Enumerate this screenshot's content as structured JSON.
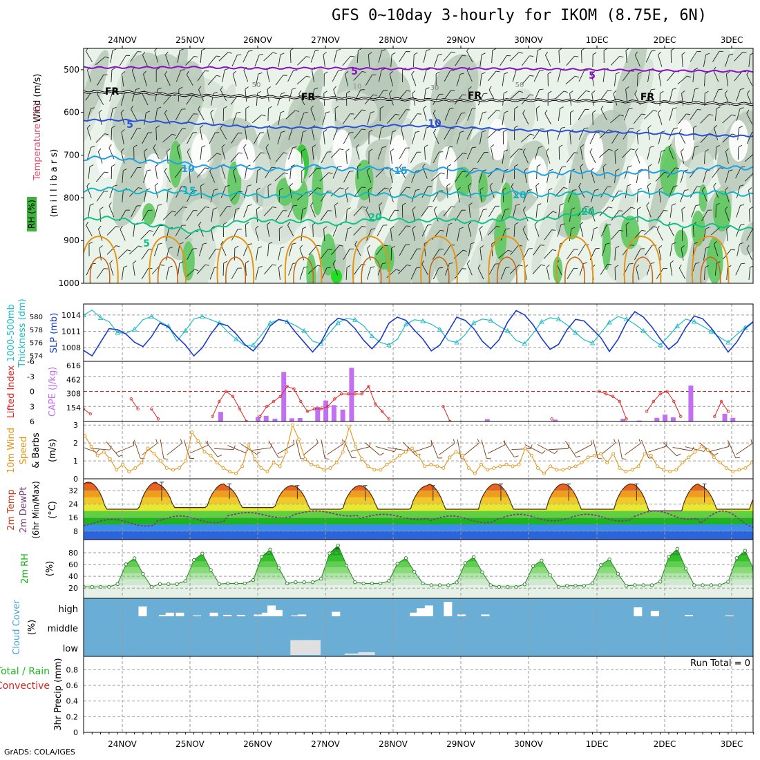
{
  "title": "GFS 0~10day 3-hourly for IKOM (8.75E, 6N)",
  "footer": "GrADS: COLA/IGES",
  "days": [
    "24NOV",
    "25NOV",
    "26NOV",
    "27NOV",
    "28NOV",
    "29NOV",
    "30NOV",
    "1DEC",
    "2DEC",
    "3DEC"
  ],
  "panel_labels": {
    "upper": [
      "Wind (m/s)",
      "Temperature (°C)",
      "RH (%)",
      "(m i l l i b a r s)"
    ],
    "thick_slp": [
      "1000-500mb",
      "Thickness (dm)",
      "SLP (mb)"
    ],
    "li_cape": [
      "Lifted Index",
      "CAPE (J/kg)"
    ],
    "wind10": [
      "10m Wind",
      "Speed",
      "& Barbs",
      "(m/s)"
    ],
    "temp2m": [
      "2m Temp",
      "2m DewPt",
      "(6hr Min/Max)",
      "(°C)"
    ],
    "rh2m": [
      "2m RH",
      "(%)"
    ],
    "cloud": [
      "Cloud Cover",
      "(%)"
    ],
    "precip": [
      "Total / Rain",
      "Convective",
      "3hr Precip (mm)"
    ]
  },
  "cloud_levels": [
    "high",
    "middle",
    "low"
  ],
  "run_total": "Run Total = 0",
  "colors": {
    "purple": "#8a0ec4",
    "blue5": "#2850d8",
    "blue10": "#1ea0e6",
    "cyan15": "#16b4c8",
    "green20": "#12c08a",
    "orange": "#e69414",
    "slp": "#1a3cc8",
    "thick": "#1cbcc8",
    "li": "#e02020",
    "cape": "#c070f0",
    "rh_green": "#10b010",
    "cloud_bg": "#6aaed6"
  },
  "chart_data": [
    {
      "type": "heatmap",
      "name": "upper",
      "ylabel": "millibars",
      "y_ticks": [
        500,
        600,
        700,
        800,
        900,
        1000
      ],
      "ylim": [
        1000,
        450
      ],
      "isotherm_labels": [
        "5",
        "FR",
        "FR",
        "FR",
        "FR",
        "5",
        "5",
        "10",
        "10",
        "15",
        "15",
        "20",
        "20",
        "20",
        "5"
      ],
      "rh_labels": [
        "50",
        "10",
        "30",
        "50"
      ],
      "isotherms": [
        {
          "value": -5,
          "p": [
            495,
            494,
            497,
            496,
            498,
            497,
            498,
            500,
            502,
            504
          ]
        },
        {
          "value": 0,
          "p": [
            552,
            560,
            563,
            566,
            569,
            572,
            571,
            573,
            576,
            580
          ]
        },
        {
          "value": 5,
          "p": [
            618,
            625,
            635,
            636,
            630,
            635,
            642,
            645,
            650,
            655
          ]
        },
        {
          "value": 10,
          "p": [
            708,
            722,
            732,
            728,
            735,
            735,
            740,
            743,
            740,
            728
          ]
        },
        {
          "value": 15,
          "p": [
            782,
            790,
            795,
            790,
            795,
            790,
            790,
            792,
            790,
            790
          ]
        },
        {
          "value": 20,
          "p": [
            850,
            880,
            850,
            860,
            850,
            855,
            850,
            835,
            860,
            870
          ]
        }
      ]
    },
    {
      "type": "line",
      "name": "thickness_slp",
      "series": [
        {
          "name": "1000-500mb Thickness (dm)",
          "axis_ticks": [
            574,
            576,
            578,
            580
          ],
          "values": [
            580.2,
            581,
            579.8,
            579.2,
            577.5,
            577.4,
            578,
            579.5,
            580,
            579.2,
            578.5,
            576.2,
            577.8,
            579.6,
            580,
            579.5,
            579,
            577.6,
            576.5,
            575.5,
            575.6,
            577.2,
            579,
            579.5,
            579.2,
            578.6,
            577.8,
            576.2,
            575.8,
            577.5,
            579,
            579.7,
            579.5,
            578.6,
            577,
            576,
            575.6,
            576.5,
            578.8,
            579.5,
            579.3,
            578.8,
            578,
            576.3,
            576,
            577.2,
            579,
            579.6,
            579.4,
            578.5,
            577.8,
            576.3,
            575.8,
            577.4,
            579.2,
            579.8,
            579.6,
            578.7,
            577.5,
            576.4,
            575.9,
            577.5,
            579.1,
            580,
            579.6,
            578.8,
            577.8,
            576.5,
            575.6,
            577,
            578.5,
            579.6,
            579.2,
            578.5,
            577.7,
            576.8,
            576,
            577.2,
            578.3,
            579.3,
            578.7,
            577.5,
            576.3,
            575,
            574.2
          ]
        },
        {
          "name": "SLP (mb)",
          "axis_ticks": [
            1008,
            1011,
            1014
          ],
          "values": [
            1007.5,
            1006.5,
            1009,
            1011.5,
            1011.3,
            1010.5,
            1009,
            1008.2,
            1010,
            1012.5,
            1011.8,
            1010,
            1008.5,
            1006.5,
            1008,
            1010.5,
            1012.5,
            1012,
            1010.5,
            1008.6,
            1007.4,
            1009.2,
            1012,
            1013.2,
            1012.8,
            1010.8,
            1009,
            1007.2,
            1009,
            1012,
            1013.4,
            1013,
            1011.5,
            1009.4,
            1007.8,
            1009.5,
            1012.5,
            1013.6,
            1013,
            1011.2,
            1009.6,
            1007.4,
            1008.5,
            1011,
            1013.6,
            1013,
            1011.5,
            1009.2,
            1007.8,
            1009.5,
            1012.7,
            1014.8,
            1014,
            1012.2,
            1009.7,
            1007.7,
            1008.6,
            1011.3,
            1013.2,
            1012.9,
            1011.4,
            1009.8,
            1007.3,
            1009.5,
            1012.6,
            1014.6,
            1013.6,
            1011.8,
            1009.6,
            1007.7,
            1009,
            1011.7,
            1013.8,
            1013.3,
            1011.6,
            1009.5,
            1007.2,
            1009,
            1011.5,
            1012.8,
            1011.6,
            1009.3,
            1006.5,
            1008.8,
            1011,
            1012,
            1011.8,
            1012.3,
            1013.4
          ]
        }
      ]
    },
    {
      "type": "bar",
      "name": "lifted_index_cape",
      "y_ticks_li": [
        -6,
        -3,
        0,
        3,
        6
      ],
      "y_ticks_cape": [
        154,
        308,
        462,
        616
      ],
      "li_series": [
        {
          "name": "Lifted Index",
          "values": [
            3.5,
            4.5,
            null,
            null,
            null,
            null,
            null,
            1.5,
            3.5,
            null,
            3.5,
            5.5,
            null,
            null,
            null,
            null,
            null,
            null,
            null,
            5,
            2,
            0,
            1,
            3.5,
            6,
            null,
            5,
            3,
            2,
            1,
            -1,
            -0.5,
            2,
            4,
            3.5,
            3.5,
            3,
            1.5,
            0.5,
            0.5,
            0.5,
            0.5,
            -1,
            2.5,
            4,
            5.5,
            null,
            null,
            null,
            null,
            null,
            null,
            null,
            3,
            6,
            null,
            null,
            null,
            null,
            null,
            null,
            null,
            null,
            null,
            null,
            null,
            null,
            null,
            null,
            5.5,
            null,
            null,
            null,
            null,
            null,
            null,
            0,
            0.5,
            1,
            2,
            5.5,
            null,
            null,
            4,
            2,
            0.5,
            0,
            2,
            5,
            null,
            null,
            null,
            null,
            5,
            2,
            4,
            null,
            null,
            null,
            null,
            null,
            null,
            null,
            null
          ]
        },
        {
          "name": "CAPE (J/kg)",
          "values": [
            0,
            0,
            0,
            0,
            0,
            0,
            0,
            0,
            0,
            0,
            0,
            0,
            0,
            0,
            0,
            0,
            0,
            0,
            0,
            0,
            0,
            0,
            0,
            0,
            0,
            0,
            0,
            0,
            0,
            0,
            0,
            0,
            0,
            0,
            0,
            0,
            0,
            0,
            0,
            0,
            0,
            0,
            0,
            0,
            0,
            0,
            0,
            0,
            0,
            0,
            0,
            0,
            0,
            0,
            0,
            0,
            0,
            0,
            0,
            0,
            0,
            0,
            0,
            0,
            0,
            0,
            0,
            0,
            0,
            0,
            0,
            0,
            0,
            0,
            0,
            0,
            0,
            0,
            0,
            0,
            0,
            0,
            0,
            0,
            0,
            0,
            0,
            0,
            0,
            0,
            0,
            0,
            0,
            0,
            0,
            0,
            0,
            0,
            0,
            0,
            0,
            0,
            0,
            0,
            0,
            0,
            0,
            0,
            0,
            0,
            0,
            0,
            0,
            0,
            0,
            0,
            0,
            0,
            0,
            0
          ]
        }
      ],
      "cape_bars": [
        {
          "x": 24.95,
          "v": 0
        },
        {
          "x": 25.45,
          "v": 105
        },
        {
          "x": 26.0,
          "v": 48
        },
        {
          "x": 26.12,
          "v": 62
        },
        {
          "x": 26.25,
          "v": 30
        },
        {
          "x": 26.38,
          "v": 545
        },
        {
          "x": 26.5,
          "v": 35
        },
        {
          "x": 26.62,
          "v": 38
        },
        {
          "x": 26.88,
          "v": 160
        },
        {
          "x": 27.0,
          "v": 230
        },
        {
          "x": 27.12,
          "v": 180
        },
        {
          "x": 27.25,
          "v": 130
        },
        {
          "x": 27.38,
          "v": 590
        },
        {
          "x": 29.38,
          "v": 25
        },
        {
          "x": 30.38,
          "v": 20
        },
        {
          "x": 31.38,
          "v": 30
        },
        {
          "x": 31.62,
          "v": 10
        },
        {
          "x": 31.88,
          "v": 40
        },
        {
          "x": 32.0,
          "v": 75
        },
        {
          "x": 32.12,
          "v": 45
        },
        {
          "x": 32.38,
          "v": 395
        },
        {
          "x": 32.88,
          "v": 85
        },
        {
          "x": 33.0,
          "v": 40
        }
      ]
    },
    {
      "type": "line",
      "name": "wind10m",
      "y_ticks": [
        0,
        1,
        2,
        3
      ],
      "values": [
        2.4,
        1.8,
        1.3,
        1.5,
        1.1,
        0.5,
        0.8,
        0.4,
        0.6,
        0.9,
        1.7,
        1.4,
        1,
        0.6,
        0.5,
        0.6,
        1,
        2.6,
        2.1,
        1.5,
        1.3,
        0.9,
        0.6,
        0.4,
        0.3,
        0.7,
        1.9,
        1.1,
        0.6,
        0.4,
        0.9,
        0.7,
        1.5,
        3,
        2.2,
        1.1,
        0.8,
        0.7,
        0.5,
        0.6,
        0.9,
        1.5,
        2.9,
        1.8,
        1.1,
        0.7,
        0.5,
        0.5,
        0.8,
        1,
        1.3,
        1.5,
        1.7,
        1.3,
        0.7,
        0.8,
        0.7,
        0.6,
        1.2,
        1.5,
        1.3,
        0.6,
        0.3,
        0.8,
        0.5,
        0.6,
        0.7,
        0.8,
        0.7,
        0.8,
        1.7,
        1.3,
        0.6,
        0.3,
        0.7,
        0.5,
        0.5,
        0.6,
        0.7,
        0.9,
        1.2,
        1.3,
        1.4,
        0.9,
        1.4,
        0.6,
        0.4,
        0.5,
        0.7,
        1.4,
        1.3,
        0.7,
        0.5,
        0.4,
        0.5,
        0.9,
        1.2,
        1.5,
        1.8,
        1.6,
        1.2,
        0.9,
        0.6,
        0.4,
        0.5,
        0.6,
        0.9
      ]
    },
    {
      "type": "area",
      "name": "temp2m",
      "y_ticks": [
        8,
        16,
        24,
        32
      ],
      "temp_daily": [
        {
          "min": 21,
          "max": 37
        },
        {
          "min": 22,
          "max": 36
        },
        {
          "min": 22,
          "max": 35
        },
        {
          "min": 21,
          "max": 35
        },
        {
          "min": 21,
          "max": 35
        },
        {
          "min": 21,
          "max": 36
        },
        {
          "min": 21,
          "max": 36
        },
        {
          "min": 21,
          "max": 36
        },
        {
          "min": 20,
          "max": 36
        },
        {
          "min": 21,
          "max": 35
        }
      ],
      "dewpoint_range": [
        12,
        20
      ],
      "dewpoint_daily": [
        {
          "min": 11,
          "max": 15
        },
        {
          "min": 13,
          "max": 17
        },
        {
          "min": 16,
          "max": 19
        },
        {
          "min": 17,
          "max": 20
        },
        {
          "min": 15,
          "max": 18
        },
        {
          "min": 13,
          "max": 17
        },
        {
          "min": 14,
          "max": 18
        },
        {
          "min": 14,
          "max": 18
        },
        {
          "min": 15,
          "max": 20
        },
        {
          "min": 10,
          "max": 20
        }
      ]
    },
    {
      "type": "area",
      "name": "rh2m",
      "y_ticks": [
        20,
        40,
        60,
        80
      ],
      "rh_daily": [
        {
          "min": 22,
          "max": 72
        },
        {
          "min": 27,
          "max": 80
        },
        {
          "min": 28,
          "max": 87
        },
        {
          "min": 30,
          "max": 94
        },
        {
          "min": 28,
          "max": 72
        },
        {
          "min": 25,
          "max": 74
        },
        {
          "min": 22,
          "max": 68
        },
        {
          "min": 24,
          "max": 70
        },
        {
          "min": 25,
          "max": 88
        },
        {
          "min": 25,
          "max": 85
        }
      ]
    },
    {
      "type": "bar",
      "name": "cloud_cover",
      "levels": [
        "high",
        "middle",
        "low"
      ],
      "high": [
        {
          "x": 24.3,
          "v": 0.55
        },
        {
          "x": 24.6,
          "v": 0.08
        },
        {
          "x": 24.7,
          "v": 0.2
        },
        {
          "x": 24.85,
          "v": 0.2
        },
        {
          "x": 25.1,
          "v": 0.05
        },
        {
          "x": 25.35,
          "v": 0.2
        },
        {
          "x": 25.55,
          "v": 0.08
        },
        {
          "x": 25.75,
          "v": 0.08
        },
        {
          "x": 26.0,
          "v": 0.1
        },
        {
          "x": 26.12,
          "v": 0.2
        },
        {
          "x": 26.2,
          "v": 0.6
        },
        {
          "x": 26.3,
          "v": 0.35
        },
        {
          "x": 26.55,
          "v": 0.05
        },
        {
          "x": 26.65,
          "v": 0.1
        },
        {
          "x": 27.15,
          "v": 0.25
        },
        {
          "x": 28.3,
          "v": 0.2
        },
        {
          "x": 28.4,
          "v": 0.45
        },
        {
          "x": 28.52,
          "v": 0.6
        },
        {
          "x": 28.8,
          "v": 0.8
        },
        {
          "x": 29.0,
          "v": 0.1
        },
        {
          "x": 29.35,
          "v": 0.1
        },
        {
          "x": 31.6,
          "v": 0.5
        },
        {
          "x": 31.85,
          "v": 0.3
        },
        {
          "x": 32.35,
          "v": 0.07
        },
        {
          "x": 32.95,
          "v": 0.05
        }
      ],
      "low": [
        {
          "x": 26.6,
          "v": 0.8
        },
        {
          "x": 26.8,
          "v": 0.8
        },
        {
          "x": 27.4,
          "v": 0.08
        },
        {
          "x": 27.6,
          "v": 0.15
        }
      ]
    },
    {
      "type": "bar",
      "name": "precip",
      "y_ticks": [
        0,
        0.2,
        0.4,
        0.6,
        0.8
      ],
      "values": []
    }
  ]
}
